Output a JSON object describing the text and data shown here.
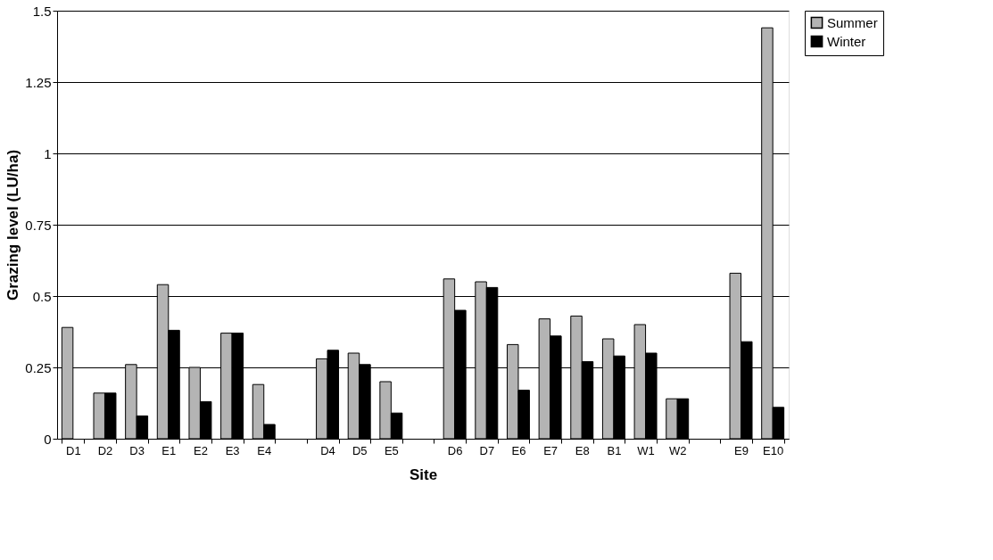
{
  "chart_data": {
    "type": "bar",
    "xlabel": "Site",
    "ylabel": "Grazing level (LU/ha)",
    "categories": [
      "D1",
      "D2",
      "D3",
      "E1",
      "E2",
      "E3",
      "E4",
      null,
      "D4",
      "D5",
      "E5",
      null,
      "D6",
      "D7",
      "E6",
      "E7",
      "E8",
      "B1",
      "W1",
      "W2",
      null,
      "E9",
      "E10"
    ],
    "series": [
      {
        "name": "Summer",
        "color": "#b4b4b4",
        "values": [
          0.39,
          0.16,
          0.26,
          0.54,
          0.25,
          0.37,
          0.19,
          null,
          0.28,
          0.3,
          0.2,
          null,
          0.56,
          0.55,
          0.33,
          0.42,
          0.43,
          0.35,
          0.4,
          0.14,
          null,
          0.58,
          1.44
        ]
      },
      {
        "name": "Winter",
        "color": "#000000",
        "values": [
          null,
          0.16,
          0.08,
          0.38,
          0.13,
          0.37,
          0.05,
          null,
          0.31,
          0.26,
          0.09,
          null,
          0.45,
          0.53,
          0.17,
          0.36,
          0.27,
          0.29,
          0.3,
          0.14,
          null,
          0.34,
          0.11
        ]
      }
    ],
    "ylim": [
      0,
      1.5
    ],
    "yticks": [
      0,
      0.25,
      0.5,
      0.75,
      1,
      1.25,
      1.5
    ],
    "grid": "y",
    "legend": "right"
  }
}
